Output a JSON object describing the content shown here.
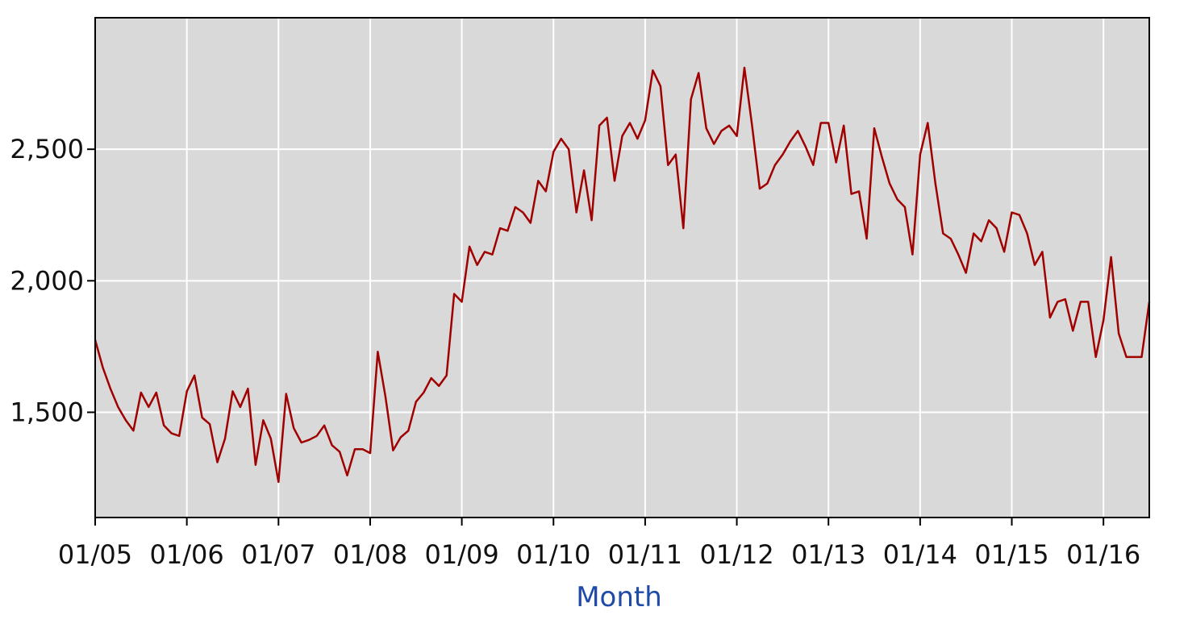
{
  "colors": {
    "plot_background": "#d9d9d9",
    "gridline": "#ffffff",
    "series_line": "#a00000",
    "axis_title": "#1f4aa8",
    "frame": "#000000"
  },
  "chart_data": {
    "type": "line",
    "title": "",
    "xlabel": "Month",
    "ylabel": "",
    "grid": true,
    "legend": "none",
    "x_ticks": [
      "01/05",
      "01/06",
      "01/07",
      "01/08",
      "01/09",
      "01/10",
      "01/11",
      "01/12",
      "01/13",
      "01/14",
      "01/15",
      "01/16"
    ],
    "y_ticks": [
      "1,500",
      "2,000",
      "2,500"
    ],
    "xlim": [
      "2005-01",
      "2016-07"
    ],
    "ylim": [
      1100,
      3000
    ],
    "series": [
      {
        "x": [
          "2005-01",
          "2005-02",
          "2005-03",
          "2005-04",
          "2005-05",
          "2005-06",
          "2005-07",
          "2005-08",
          "2005-09",
          "2005-10",
          "2005-11",
          "2005-12",
          "2006-01",
          "2006-02",
          "2006-03",
          "2006-04",
          "2006-05",
          "2006-06",
          "2006-07",
          "2006-08",
          "2006-09",
          "2006-10",
          "2006-11",
          "2006-12",
          "2007-01",
          "2007-02",
          "2007-03",
          "2007-04",
          "2007-05",
          "2007-06",
          "2007-07",
          "2007-08",
          "2007-09",
          "2007-10",
          "2007-11",
          "2007-12",
          "2008-01",
          "2008-02",
          "2008-03",
          "2008-04",
          "2008-05",
          "2008-06",
          "2008-07",
          "2008-08",
          "2008-09",
          "2008-10",
          "2008-11",
          "2008-12",
          "2009-01",
          "2009-02",
          "2009-03",
          "2009-04",
          "2009-05",
          "2009-06",
          "2009-07",
          "2009-08",
          "2009-09",
          "2009-10",
          "2009-11",
          "2009-12",
          "2010-01",
          "2010-02",
          "2010-03",
          "2010-04",
          "2010-05",
          "2010-06",
          "2010-07",
          "2010-08",
          "2010-09",
          "2010-10",
          "2010-11",
          "2010-12",
          "2011-01",
          "2011-02",
          "2011-03",
          "2011-04",
          "2011-05",
          "2011-06",
          "2011-07",
          "2011-08",
          "2011-09",
          "2011-10",
          "2011-11",
          "2011-12",
          "2012-01",
          "2012-02",
          "2012-03",
          "2012-04",
          "2012-05",
          "2012-06",
          "2012-07",
          "2012-08",
          "2012-09",
          "2012-10",
          "2012-11",
          "2012-12",
          "2013-01",
          "2013-02",
          "2013-03",
          "2013-04",
          "2013-05",
          "2013-06",
          "2013-07",
          "2013-08",
          "2013-09",
          "2013-10",
          "2013-11",
          "2013-12",
          "2014-01",
          "2014-02",
          "2014-03",
          "2014-04",
          "2014-05",
          "2014-06",
          "2014-07",
          "2014-08",
          "2014-09",
          "2014-10",
          "2014-11",
          "2014-12",
          "2015-01",
          "2015-02",
          "2015-03",
          "2015-04",
          "2015-05",
          "2015-06",
          "2015-07",
          "2015-08",
          "2015-09",
          "2015-10",
          "2015-11",
          "2015-12",
          "2016-01",
          "2016-02",
          "2016-03",
          "2016-04",
          "2016-05",
          "2016-06",
          "2016-07"
        ],
        "values": [
          1775,
          1670,
          1590,
          1520,
          1470,
          1430,
          1575,
          1520,
          1575,
          1450,
          1420,
          1410,
          1580,
          1640,
          1480,
          1455,
          1310,
          1400,
          1580,
          1520,
          1590,
          1300,
          1470,
          1400,
          1235,
          1570,
          1440,
          1385,
          1395,
          1410,
          1450,
          1375,
          1350,
          1260,
          1360,
          1360,
          1345,
          1730,
          1560,
          1355,
          1405,
          1430,
          1540,
          1575,
          1630,
          1600,
          1640,
          1950,
          1920,
          2130,
          2060,
          2110,
          2100,
          2200,
          2190,
          2280,
          2260,
          2220,
          2380,
          2340,
          2490,
          2540,
          2500,
          2260,
          2420,
          2230,
          2590,
          2620,
          2380,
          2550,
          2600,
          2540,
          2610,
          2800,
          2740,
          2440,
          2480,
          2200,
          2690,
          2790,
          2580,
          2520,
          2570,
          2590,
          2550,
          2810,
          2590,
          2350,
          2370,
          2440,
          2480,
          2530,
          2570,
          2510,
          2440,
          2600,
          2600,
          2450,
          2590,
          2330,
          2340,
          2160,
          2580,
          2470,
          2370,
          2310,
          2280,
          2100,
          2480,
          2600,
          2370,
          2180,
          2160,
          2100,
          2030,
          2180,
          2150,
          2230,
          2200,
          2110,
          2260,
          2250,
          2180,
          2060,
          2110,
          1860,
          1920,
          1930,
          1810,
          1920,
          1920,
          1710,
          1850,
          2090,
          1800,
          1710,
          1710,
          1710,
          1920
        ]
      }
    ]
  }
}
